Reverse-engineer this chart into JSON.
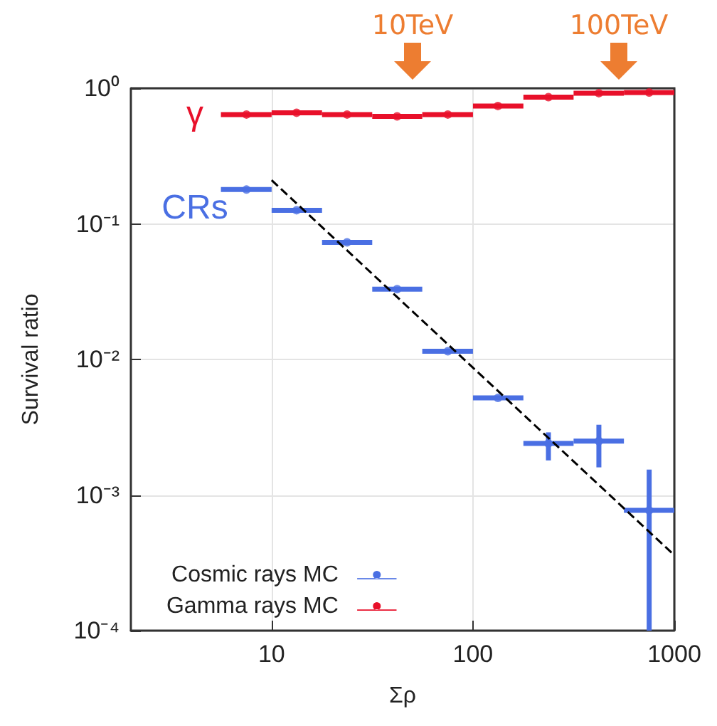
{
  "chart_data": {
    "type": "scatter",
    "xlabel": "Σρ",
    "ylabel": "Survival ratio",
    "log": "xy",
    "grid": true,
    "legend": "bottom left",
    "marker": "circle",
    "xlim": [
      2,
      1000
    ],
    "xticks": [
      10,
      100,
      1000
    ],
    "ylim": [
      0.0001,
      1
    ],
    "yticks": [
      {
        "value": 0.0001,
        "label": "10⁻⁴"
      },
      {
        "value": 0.001,
        "label": "10⁻³"
      },
      {
        "value": 0.01,
        "label": "10⁻²"
      },
      {
        "value": 0.1,
        "label": "10⁻¹"
      },
      {
        "value": 1,
        "label": "10⁰"
      }
    ],
    "series": [
      {
        "name": "Cosmic rays MC",
        "color": "#4a6fe3",
        "x": [
          7.5,
          13.3,
          23.7,
          42,
          75,
          133,
          237,
          422,
          750
        ],
        "values": [
          0.179,
          0.126,
          0.073,
          0.033,
          0.0115,
          0.0052,
          0.0024,
          0.0025,
          0.00077
        ],
        "xerrors": [
          [
            5.6,
            10
          ],
          [
            10,
            17.8
          ],
          [
            17.8,
            31.6
          ],
          [
            31.6,
            56
          ],
          [
            56,
            100
          ],
          [
            100,
            178
          ],
          [
            178,
            316
          ],
          [
            316,
            562
          ],
          [
            562,
            1000
          ]
        ],
        "errors": [
          null,
          null,
          null,
          null,
          null,
          null,
          [
            0.0018,
            0.0029
          ],
          [
            0.0016,
            0.0033
          ],
          [
            0.0001,
            0.00154
          ]
        ]
      },
      {
        "name": "Gamma rays MC",
        "color": "#e8102a",
        "x": [
          7.5,
          13.3,
          23.7,
          42,
          75,
          133,
          237,
          422,
          750
        ],
        "values": [
          0.64,
          0.66,
          0.64,
          0.62,
          0.64,
          0.74,
          0.86,
          0.92,
          0.93
        ],
        "xerrors": [
          [
            5.6,
            10
          ],
          [
            10,
            17.8
          ],
          [
            17.8,
            31.6
          ],
          [
            31.6,
            56
          ],
          [
            56,
            100
          ],
          [
            100,
            178
          ],
          [
            178,
            316
          ],
          [
            316,
            562
          ],
          [
            562,
            1000
          ]
        ]
      },
      {
        "type": "line",
        "color": "#000000",
        "line_style": "dashed",
        "marker": "none",
        "x": [
          10,
          1000
        ],
        "values": [
          0.21,
          0.00036
        ]
      }
    ],
    "annotations": [
      "γ",
      "CRs",
      "10TeV",
      "100TeV"
    ]
  }
}
